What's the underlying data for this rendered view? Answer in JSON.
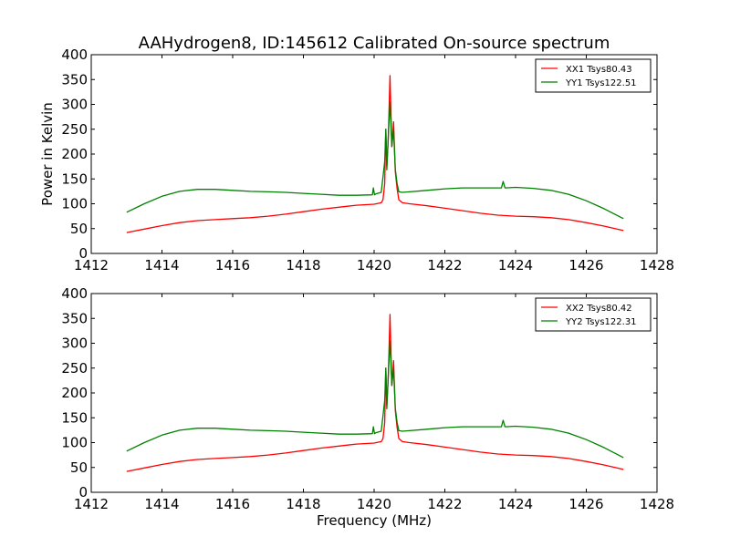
{
  "figure": {
    "title": "AAHydrogen8, ID:145612 Calibrated On-source spectrum",
    "xlabel": "Frequency (MHz)",
    "ylabel": "Power in Kelvin",
    "colors": {
      "XX": "#ff0000",
      "YY": "#008000"
    }
  },
  "chart_data": [
    {
      "type": "line",
      "title": "AAHydrogen8, ID:145612 Calibrated On-source spectrum",
      "xlabel": "",
      "ylabel": "Power in Kelvin",
      "xlim": [
        1412,
        1428
      ],
      "ylim": [
        0,
        400
      ],
      "xticks": [
        1412,
        1414,
        1416,
        1418,
        1420,
        1422,
        1424,
        1426,
        1428
      ],
      "yticks": [
        0,
        50,
        100,
        150,
        200,
        250,
        300,
        350,
        400
      ],
      "legend_position": "top-right",
      "series": [
        {
          "name": "XX1 Tsys80.43",
          "color": "#ff0000",
          "x": [
            1413.0,
            1413.5,
            1414.0,
            1414.5,
            1415.0,
            1415.5,
            1416.0,
            1416.5,
            1417.0,
            1417.5,
            1418.0,
            1418.5,
            1419.0,
            1419.5,
            1420.0,
            1420.2,
            1420.25,
            1420.3,
            1420.33,
            1420.36,
            1420.4,
            1420.45,
            1420.5,
            1420.55,
            1420.6,
            1420.65,
            1420.7,
            1420.8,
            1421.0,
            1421.5,
            1422.0,
            1422.5,
            1423.0,
            1423.5,
            1424.0,
            1424.5,
            1425.0,
            1425.5,
            1426.0,
            1426.5,
            1427.05
          ],
          "y": [
            42,
            49,
            56,
            62,
            66,
            68,
            70,
            72,
            75,
            79,
            84,
            89,
            93,
            97,
            99,
            102,
            108,
            140,
            250,
            175,
            230,
            358,
            215,
            265,
            165,
            130,
            108,
            102,
            100,
            96,
            91,
            86,
            81,
            77,
            75,
            74,
            72,
            68,
            62,
            55,
            46
          ]
        },
        {
          "name": "YY1 Tsys122.51",
          "color": "#008000",
          "x": [
            1413.0,
            1413.5,
            1414.0,
            1414.5,
            1415.0,
            1415.5,
            1416.0,
            1416.5,
            1417.0,
            1417.5,
            1418.0,
            1418.5,
            1419.0,
            1419.5,
            1419.95,
            1419.98,
            1420.01,
            1420.05,
            1420.2,
            1420.3,
            1420.33,
            1420.36,
            1420.4,
            1420.45,
            1420.5,
            1420.55,
            1420.6,
            1420.65,
            1420.7,
            1420.8,
            1421.0,
            1421.5,
            1422.0,
            1422.5,
            1423.0,
            1423.6,
            1423.65,
            1423.7,
            1424.0,
            1424.5,
            1425.0,
            1425.5,
            1426.0,
            1426.5,
            1427.05
          ],
          "y": [
            83,
            100,
            115,
            125,
            129,
            129,
            127,
            125,
            124,
            123,
            121,
            119,
            117,
            117,
            118,
            132,
            118,
            120,
            123,
            185,
            250,
            168,
            235,
            305,
            215,
            250,
            170,
            140,
            124,
            123,
            124,
            127,
            130,
            132,
            132,
            132,
            145,
            132,
            133,
            131,
            127,
            119,
            106,
            90,
            70
          ]
        }
      ]
    },
    {
      "type": "line",
      "title": "",
      "xlabel": "Frequency (MHz)",
      "ylabel": "",
      "xlim": [
        1412,
        1428
      ],
      "ylim": [
        0,
        400
      ],
      "xticks": [
        1412,
        1414,
        1416,
        1418,
        1420,
        1422,
        1424,
        1426,
        1428
      ],
      "yticks": [
        0,
        50,
        100,
        150,
        200,
        250,
        300,
        350,
        400
      ],
      "legend_position": "top-right",
      "series": [
        {
          "name": "XX2 Tsys80.42",
          "color": "#ff0000",
          "x": [
            1413.0,
            1413.5,
            1414.0,
            1414.5,
            1415.0,
            1415.5,
            1416.0,
            1416.5,
            1417.0,
            1417.5,
            1418.0,
            1418.5,
            1419.0,
            1419.5,
            1420.0,
            1420.2,
            1420.25,
            1420.3,
            1420.33,
            1420.36,
            1420.4,
            1420.45,
            1420.5,
            1420.55,
            1420.6,
            1420.65,
            1420.7,
            1420.8,
            1421.0,
            1421.5,
            1422.0,
            1422.5,
            1423.0,
            1423.5,
            1424.0,
            1424.5,
            1425.0,
            1425.5,
            1426.0,
            1426.5,
            1427.05
          ],
          "y": [
            42,
            49,
            56,
            62,
            66,
            68,
            70,
            72,
            75,
            79,
            84,
            89,
            93,
            97,
            99,
            102,
            108,
            140,
            250,
            175,
            230,
            358,
            215,
            265,
            165,
            130,
            108,
            102,
            100,
            96,
            91,
            86,
            81,
            77,
            75,
            74,
            72,
            68,
            62,
            55,
            46
          ]
        },
        {
          "name": "YY2 Tsys122.31",
          "color": "#008000",
          "x": [
            1413.0,
            1413.5,
            1414.0,
            1414.5,
            1415.0,
            1415.5,
            1416.0,
            1416.5,
            1417.0,
            1417.5,
            1418.0,
            1418.5,
            1419.0,
            1419.5,
            1419.95,
            1419.98,
            1420.01,
            1420.05,
            1420.2,
            1420.3,
            1420.33,
            1420.36,
            1420.4,
            1420.45,
            1420.5,
            1420.55,
            1420.6,
            1420.65,
            1420.7,
            1420.8,
            1421.0,
            1421.5,
            1422.0,
            1422.5,
            1423.0,
            1423.6,
            1423.65,
            1423.7,
            1424.0,
            1424.5,
            1425.0,
            1425.5,
            1426.0,
            1426.5,
            1427.05
          ],
          "y": [
            83,
            100,
            115,
            125,
            129,
            129,
            127,
            125,
            124,
            123,
            121,
            119,
            117,
            117,
            118,
            132,
            118,
            120,
            123,
            185,
            250,
            168,
            235,
            305,
            215,
            250,
            170,
            140,
            124,
            123,
            124,
            127,
            130,
            132,
            132,
            132,
            145,
            132,
            133,
            131,
            127,
            119,
            106,
            90,
            70
          ]
        }
      ]
    }
  ]
}
